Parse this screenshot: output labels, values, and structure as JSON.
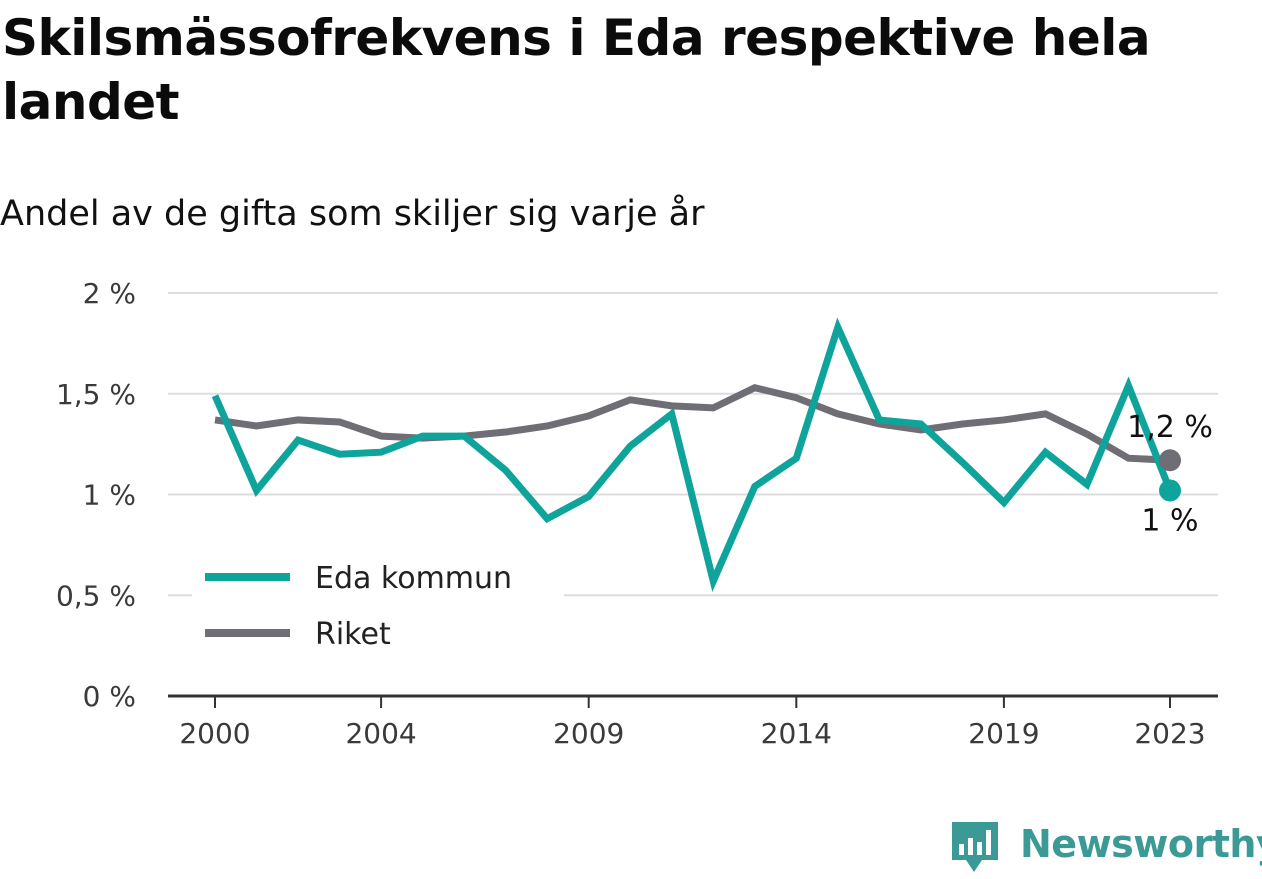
{
  "title": "Skilsmässofrekvens i Eda respektive hela landet",
  "subtitle": "Andel av de gifta som skiljer sig varje år",
  "brand": "Newsworthy",
  "colors": {
    "eda": "#0ea39b",
    "riket": "#6f6e75",
    "grid": "#dddddd",
    "axis": "#333333"
  },
  "chart_data": {
    "type": "line",
    "title": "Skilsmässofrekvens i Eda respektive hela landet",
    "subtitle": "Andel av de gifta som skiljer sig varje år",
    "x": [
      2000,
      2001,
      2002,
      2003,
      2004,
      2005,
      2006,
      2007,
      2008,
      2009,
      2010,
      2011,
      2012,
      2013,
      2014,
      2015,
      2016,
      2017,
      2018,
      2019,
      2020,
      2021,
      2022,
      2023
    ],
    "x_ticks": [
      "2000",
      "2004",
      "2009",
      "2014",
      "2019",
      "2023"
    ],
    "y_ticks": [
      "0 %",
      "0,5 %",
      "1 %",
      "1,5 %",
      "2 %"
    ],
    "ylim": [
      0,
      2
    ],
    "grid": true,
    "legend_position": "bottom-left",
    "series": [
      {
        "name": "Eda kommun",
        "color": "#0ea39b",
        "values": [
          1.49,
          1.02,
          1.27,
          1.2,
          1.21,
          1.29,
          1.29,
          1.12,
          0.88,
          0.99,
          1.24,
          1.4,
          0.57,
          1.04,
          1.18,
          1.83,
          1.37,
          1.35,
          1.16,
          0.96,
          1.21,
          1.05,
          1.54,
          1.02
        ],
        "end_label": "1 %"
      },
      {
        "name": "Riket",
        "color": "#6f6e75",
        "values": [
          1.37,
          1.34,
          1.37,
          1.36,
          1.29,
          1.28,
          1.29,
          1.31,
          1.34,
          1.39,
          1.47,
          1.44,
          1.43,
          1.53,
          1.48,
          1.4,
          1.35,
          1.32,
          1.35,
          1.37,
          1.4,
          1.3,
          1.18,
          1.17
        ],
        "end_label": "1,2 %"
      }
    ]
  }
}
